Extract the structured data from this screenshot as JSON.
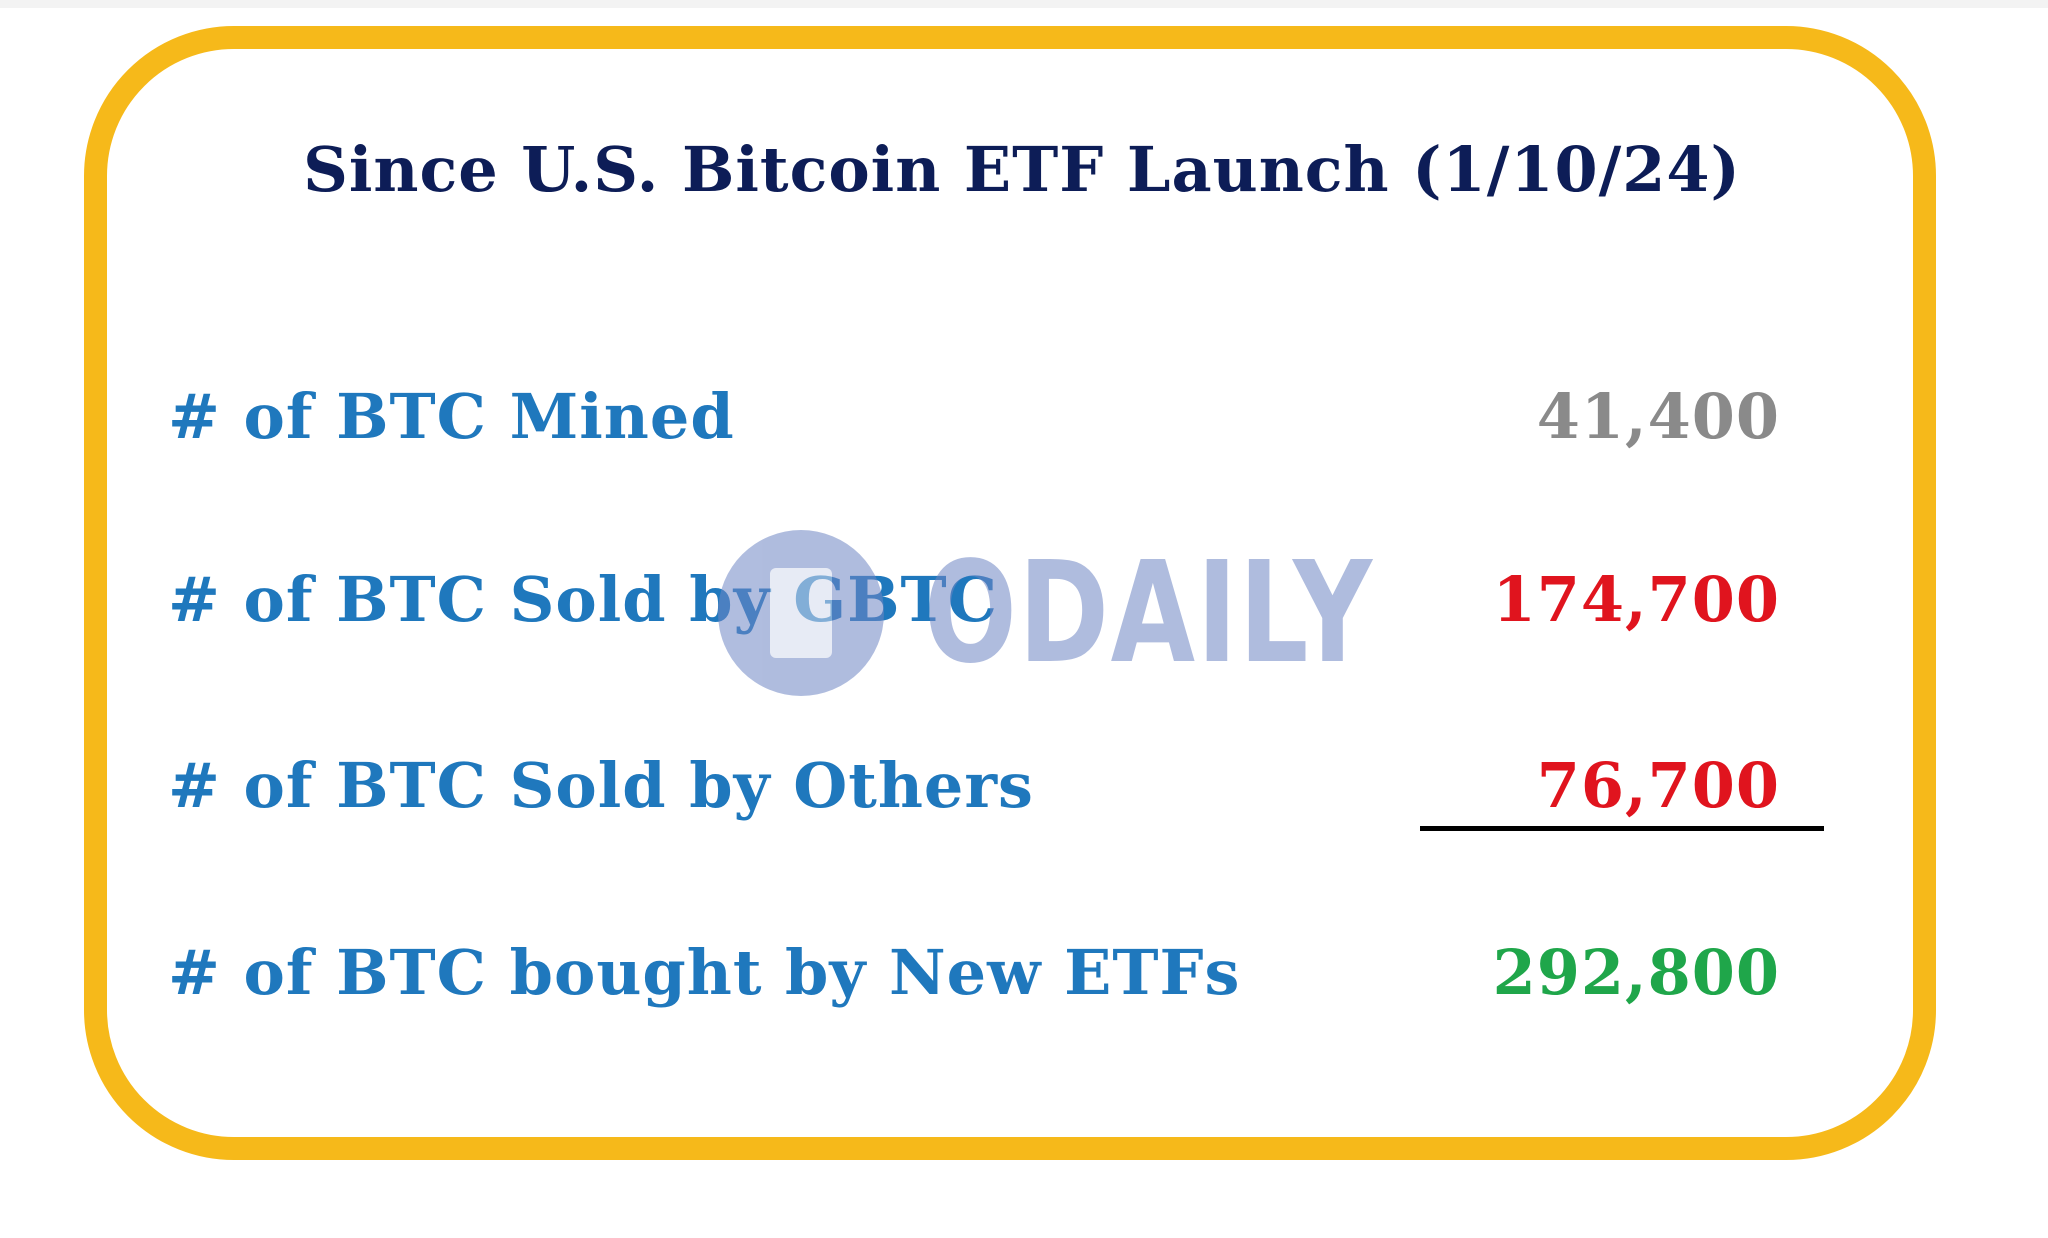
{
  "title": "Since U.S. Bitcoin ETF Launch (1/10/24)",
  "rows": [
    {
      "label": "# of BTC Mined",
      "value": "41,400",
      "value_color": "#8a8a8a"
    },
    {
      "label": "# of BTC Sold by GBTC",
      "value": "174,700",
      "value_color": "#e0141e"
    },
    {
      "label": "# of BTC Sold by Others",
      "value": "76,700",
      "value_color": "#e0141e"
    },
    {
      "label": "# of BTC bought by New ETFs",
      "value": "292,800",
      "value_color": "#1fa64a"
    }
  ],
  "watermark": {
    "text": "ODAILY",
    "icon": "odaily-logo-icon"
  },
  "colors": {
    "border": "#f6b91a",
    "title": "#0d1d57",
    "label": "#1f78bd"
  }
}
